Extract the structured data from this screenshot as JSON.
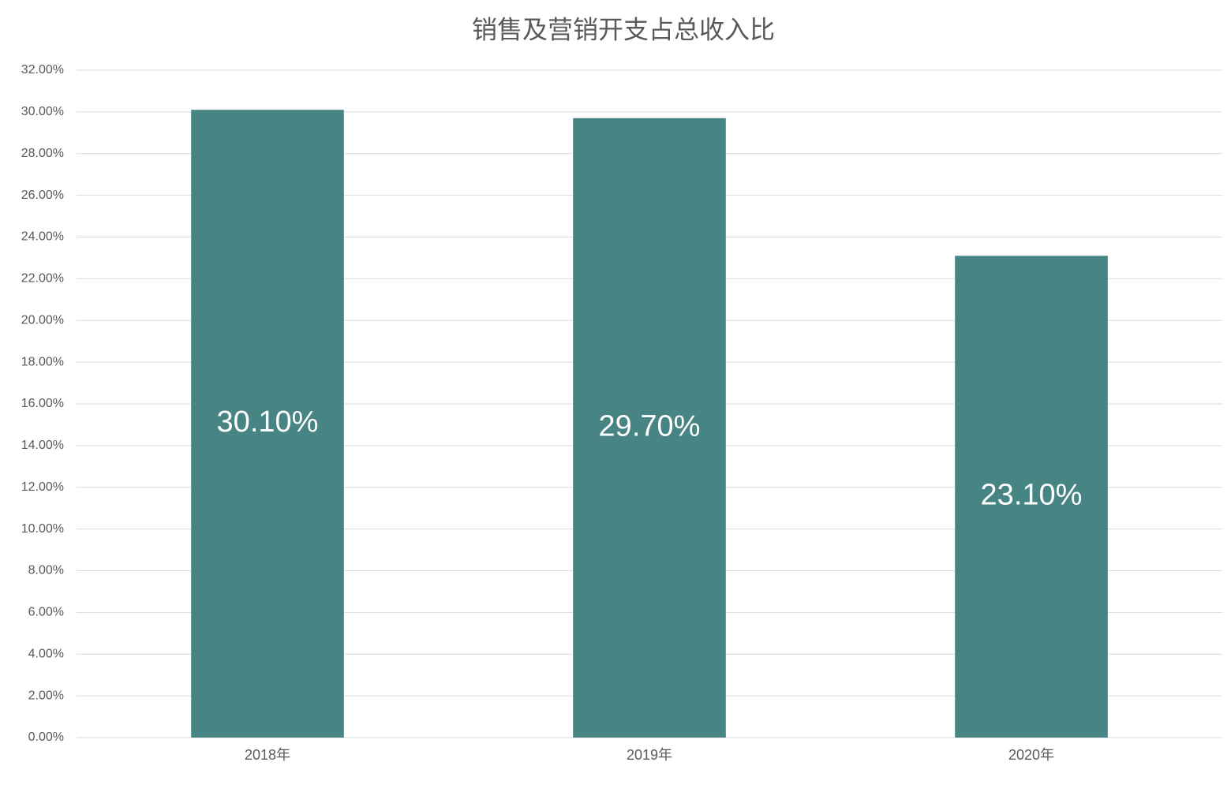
{
  "chart_data": {
    "type": "bar",
    "title": "销售及营销开支占总收入比",
    "categories": [
      "2018年",
      "2019年",
      "2020年"
    ],
    "values": [
      30.1,
      29.7,
      23.1
    ],
    "value_labels": [
      "30.10%",
      "29.70%",
      "23.10%"
    ],
    "color": "#468583",
    "ylim": [
      0,
      32
    ],
    "yticks": [
      {
        "value": 0,
        "label": "0.00%"
      },
      {
        "value": 2,
        "label": "2.00%"
      },
      {
        "value": 4,
        "label": "4.00%"
      },
      {
        "value": 6,
        "label": "6.00%"
      },
      {
        "value": 8,
        "label": "8.00%"
      },
      {
        "value": 10,
        "label": "10.00%"
      },
      {
        "value": 12,
        "label": "12.00%"
      },
      {
        "value": 14,
        "label": "14.00%"
      },
      {
        "value": 16,
        "label": "16.00%"
      },
      {
        "value": 18,
        "label": "18.00%"
      },
      {
        "value": 20,
        "label": "20.00%"
      },
      {
        "value": 22,
        "label": "22.00%"
      },
      {
        "value": 24,
        "label": "24.00%"
      },
      {
        "value": 26,
        "label": "26.00%"
      },
      {
        "value": 28,
        "label": "28.00%"
      },
      {
        "value": 30,
        "label": "30.00%"
      },
      {
        "value": 32,
        "label": "32.00%"
      }
    ],
    "grid": true
  }
}
